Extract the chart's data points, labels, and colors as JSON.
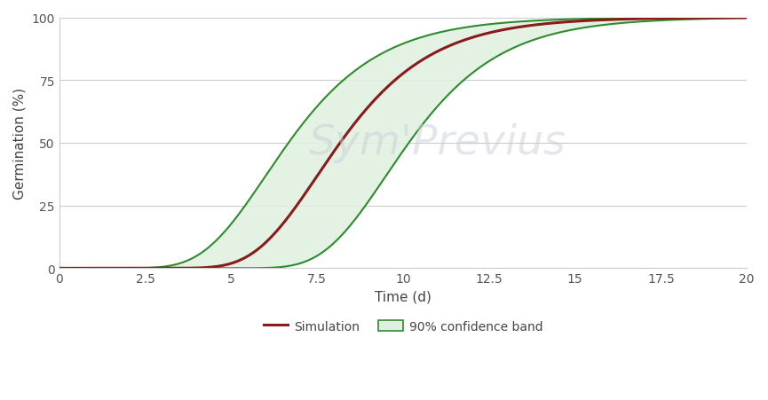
{
  "title": "",
  "xlabel": "Time (d)",
  "ylabel": "Germination (%)",
  "xlim": [
    0,
    20
  ],
  "ylim": [
    0,
    100
  ],
  "xticks": [
    0,
    2.5,
    5,
    7.5,
    10,
    12.5,
    15,
    17.5,
    20
  ],
  "yticks": [
    0,
    25,
    50,
    75,
    100
  ],
  "sim_color": "#8B1A1A",
  "band_color": "#2E8B2E",
  "band_fill_color": "#E0F0E0",
  "band_fill_alpha": 0.85,
  "sim_linewidth": 2.2,
  "band_linewidth": 1.5,
  "watermark_text": "Sym'Previus",
  "watermark_color": "#C8D0D8",
  "watermark_fontsize": 34,
  "watermark_alpha": 0.5,
  "background_color": "#FFFFFF",
  "grid_color": "#CCCCCC",
  "legend_sim_label": "Simulation",
  "legend_band_label": "90% confidence band",
  "sim_mu": 7.5,
  "sim_b": 0.55,
  "band_lower_mu": 6.0,
  "band_lower_b": 0.55,
  "band_upper_mu": 9.5,
  "band_upper_b": 0.55,
  "tick_label_color": "#555555",
  "axis_label_color": "#444444",
  "tick_label_fontsize": 10,
  "axis_label_fontsize": 11
}
